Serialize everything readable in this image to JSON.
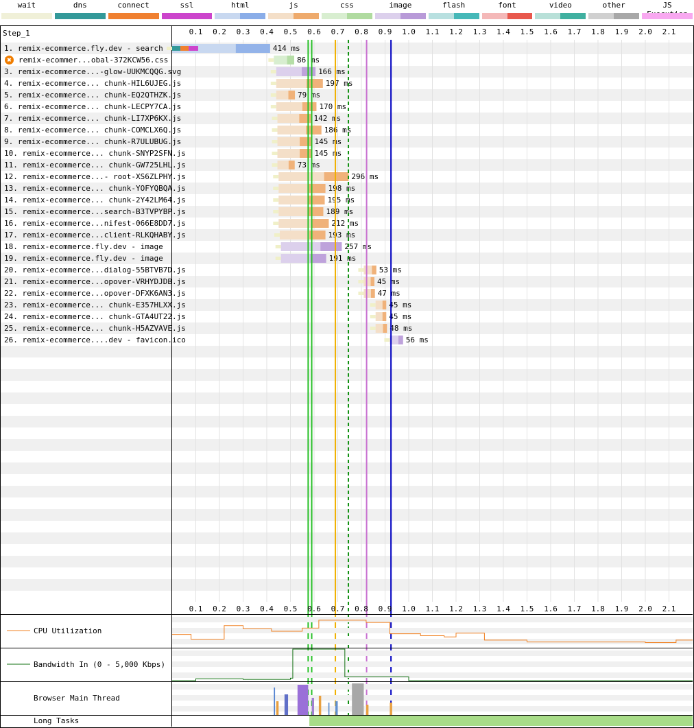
{
  "legend": [
    {
      "label": "wait",
      "light": "#f0f0d8",
      "dark": "#f0f0d8"
    },
    {
      "label": "dns",
      "light": "#339999",
      "dark": "#339999"
    },
    {
      "label": "connect",
      "light": "#f08030",
      "dark": "#f08030"
    },
    {
      "label": "ssl",
      "light": "#cc44cc",
      "dark": "#cc44cc"
    },
    {
      "label": "html",
      "light": "#c8d8f0",
      "dark": "#8aade8"
    },
    {
      "label": "js",
      "light": "#f4dfc8",
      "dark": "#eeaa6c"
    },
    {
      "label": "css",
      "light": "#d8eed0",
      "dark": "#b0dba0"
    },
    {
      "label": "image",
      "light": "#dcd0ec",
      "dark": "#b89ad8"
    },
    {
      "label": "flash",
      "light": "#b8e0e0",
      "dark": "#45b8b8"
    },
    {
      "label": "font",
      "light": "#f4b8b8",
      "dark": "#e8584c"
    },
    {
      "label": "video",
      "light": "#b8e0d8",
      "dark": "#40b0a0"
    },
    {
      "label": "other",
      "light": "#d0d0d0",
      "dark": "#a8a8a8"
    },
    {
      "label": "JS Execution",
      "light": "#f8a8f0",
      "dark": "#f8a8f0"
    }
  ],
  "step_label": "Step_1",
  "chart_data": {
    "type": "waterfall",
    "x_unit": "s",
    "xlim": [
      0,
      2.2
    ],
    "ticks": [
      "0.1",
      "0.2",
      "0.3",
      "0.4",
      "0.5",
      "0.6",
      "0.7",
      "0.8",
      "0.9",
      "1.0",
      "1.1",
      "1.2",
      "1.3",
      "1.4",
      "1.5",
      "1.6",
      "1.7",
      "1.8",
      "1.9",
      "2.0",
      "2.1"
    ],
    "markers": [
      {
        "t": 0.575,
        "color": "#28c028",
        "style": "solid"
      },
      {
        "t": 0.59,
        "color": "#28c028",
        "style": "solid"
      },
      {
        "t": 0.69,
        "color": "#f0b000",
        "style": "solid"
      },
      {
        "t": 0.745,
        "color": "#109010",
        "style": "dashed"
      },
      {
        "t": 0.822,
        "color": "#c870d0",
        "style": "solid"
      },
      {
        "t": 0.925,
        "color": "#0000c0",
        "style": "solid"
      }
    ],
    "requests": [
      {
        "label": "1. remix-ecommerce.fly.dev - search",
        "type": "html",
        "start": 0.0,
        "ms": 414,
        "phases": [
          {
            "name": "dns",
            "s": 0.0,
            "e": 0.035
          },
          {
            "name": "connect",
            "s": 0.035,
            "e": 0.07
          },
          {
            "name": "ssl",
            "s": 0.07,
            "e": 0.11
          }
        ]
      },
      {
        "label": "2. remix-ecommer...obal-372KCW56.css",
        "type": "css",
        "start": 0.43,
        "ms": 86,
        "error": true
      },
      {
        "label": "3. remix-ecommerce...-glow-UUKMCQQG.svg",
        "type": "image",
        "start": 0.44,
        "ms": 166
      },
      {
        "label": "4. remix-ecommerce... chunk-HIL6UJEG.js",
        "type": "js",
        "start": 0.44,
        "ms": 197
      },
      {
        "label": "5. remix-ecommerce... chunk-EQ2QTHZK.js",
        "type": "js",
        "start": 0.44,
        "ms": 79
      },
      {
        "label": "6. remix-ecommerce... chunk-LECPY7CA.js",
        "type": "js",
        "start": 0.44,
        "ms": 170
      },
      {
        "label": "7. remix-ecommerce... chunk-LI7XP6KX.js",
        "type": "js",
        "start": 0.445,
        "ms": 142
      },
      {
        "label": "8. remix-ecommerce... chunk-COMCLX6Q.js",
        "type": "js",
        "start": 0.445,
        "ms": 186
      },
      {
        "label": "9. remix-ecommerce... chunk-R7ULUBUG.js",
        "type": "js",
        "start": 0.445,
        "ms": 145
      },
      {
        "label": "10. remix-ecommerce... chunk-SNYP2SFN.js",
        "type": "js",
        "start": 0.445,
        "ms": 145
      },
      {
        "label": "11. remix-ecommerce... chunk-GW725LHL.js",
        "type": "js",
        "start": 0.445,
        "ms": 73
      },
      {
        "label": "12. remix-ecommerce...- root-XS6ZLPHY.js",
        "type": "js",
        "start": 0.45,
        "ms": 296
      },
      {
        "label": "13. remix-ecommerce... chunk-YOFYQBQA.js",
        "type": "js",
        "start": 0.45,
        "ms": 198
      },
      {
        "label": "14. remix-ecommerce... chunk-2Y42LM64.js",
        "type": "js",
        "start": 0.45,
        "ms": 195
      },
      {
        "label": "15. remix-ecommerce...search-B3TVPYBP.js",
        "type": "js",
        "start": 0.45,
        "ms": 189
      },
      {
        "label": "16. remix-ecommerce...nifest-066E8DD7.js",
        "type": "js",
        "start": 0.45,
        "ms": 212
      },
      {
        "label": "17. remix-ecommerce...client-RLKQHABY.js",
        "type": "js",
        "start": 0.455,
        "ms": 193
      },
      {
        "label": "18. remix-ecommerce.fly.dev - image",
        "type": "image",
        "start": 0.46,
        "ms": 257
      },
      {
        "label": "19. remix-ecommerce.fly.dev - image",
        "type": "image",
        "start": 0.46,
        "ms": 191
      },
      {
        "label": "20. remix-ecommerce...dialog-55BTVB7D.js",
        "type": "js",
        "start": 0.81,
        "ms": 53
      },
      {
        "label": "21. remix-ecommerce...opover-VRHYDJDB.js",
        "type": "js",
        "start": 0.81,
        "ms": 45
      },
      {
        "label": "22. remix-ecommerce...opover-DFXK6AN3.js",
        "type": "js",
        "start": 0.81,
        "ms": 47
      },
      {
        "label": "23. remix-ecommerce... chunk-E357HLXX.js",
        "type": "js",
        "start": 0.86,
        "ms": 45
      },
      {
        "label": "24. remix-ecommerce... chunk-GTA4UT22.js",
        "type": "js",
        "start": 0.86,
        "ms": 45
      },
      {
        "label": "25. remix-ecommerce... chunk-H5AZVAVE.js",
        "type": "js",
        "start": 0.86,
        "ms": 48
      },
      {
        "label": "26. remix-ecommerce....dev - favicon.ico",
        "type": "image",
        "start": 0.92,
        "ms": 56
      }
    ],
    "cpu_utilization": [
      [
        0,
        40
      ],
      [
        0.08,
        25
      ],
      [
        0.22,
        68
      ],
      [
        0.3,
        58
      ],
      [
        0.42,
        50
      ],
      [
        0.55,
        60
      ],
      [
        0.62,
        85
      ],
      [
        0.82,
        78
      ],
      [
        0.92,
        42
      ],
      [
        1.05,
        36
      ],
      [
        1.15,
        32
      ],
      [
        1.2,
        44
      ],
      [
        1.32,
        22
      ],
      [
        1.5,
        16
      ],
      [
        2.0,
        14
      ],
      [
        2.13,
        22
      ],
      [
        2.2,
        22
      ]
    ],
    "bandwidth_in": [
      [
        0,
        0
      ],
      [
        0.1,
        6
      ],
      [
        0.3,
        4
      ],
      [
        0.5,
        8
      ],
      [
        0.51,
        100
      ],
      [
        0.72,
        100
      ],
      [
        0.73,
        12
      ],
      [
        1.0,
        0
      ],
      [
        2.2,
        0
      ]
    ]
  },
  "sections": {
    "cpu": "CPU Utilization",
    "bandwidth": "Bandwidth In (0 - 5,000 Kbps)",
    "main_thread": "Browser Main Thread",
    "long_tasks": "Long Tasks"
  }
}
